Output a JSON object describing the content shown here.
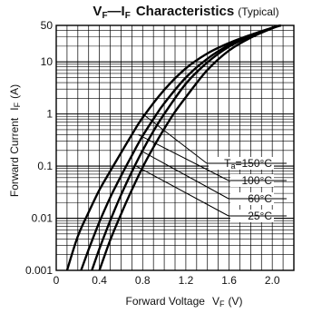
{
  "chart_data": {
    "type": "line",
    "title": {
      "main_prefix": "V",
      "main_sub1": "F",
      "dash": "—",
      "main_i": "I",
      "main_sub2": "F",
      "main_rest": "Characteristics",
      "typ": "(Typical)"
    },
    "xlabel": {
      "text": "Forward Voltage",
      "var": "V",
      "var_sub": "F",
      "unit": "(V)"
    },
    "ylabel": {
      "text": "Forward Current",
      "var": "I",
      "var_sub": "F",
      "unit": "(A)"
    },
    "x_scale": "linear",
    "y_scale": "log",
    "xlim": [
      0,
      2.2
    ],
    "ylim": [
      0.001,
      50
    ],
    "x_ticks": [
      {
        "value": 0,
        "label": "0"
      },
      {
        "value": 0.4,
        "label": "0.4"
      },
      {
        "value": 0.8,
        "label": "0.8"
      },
      {
        "value": 1.2,
        "label": "1.2"
      },
      {
        "value": 1.6,
        "label": "1.6"
      },
      {
        "value": 2.0,
        "label": "2.0"
      }
    ],
    "y_ticks": [
      {
        "value": 0.001,
        "label": "0.001"
      },
      {
        "value": 0.01,
        "label": "0.01"
      },
      {
        "value": 0.1,
        "label": "0.1"
      },
      {
        "value": 1,
        "label": "1"
      },
      {
        "value": 10,
        "label": "10"
      },
      {
        "value": 50,
        "label": "50"
      }
    ],
    "grid": true,
    "series": [
      {
        "name": "150°C",
        "x": [
          0.1,
          0.2,
          0.3,
          0.4,
          0.5,
          0.6,
          0.7,
          0.8,
          1.0,
          1.2,
          1.4,
          1.6,
          1.8,
          2.0,
          2.08
        ],
        "y": [
          0.001,
          0.0045,
          0.013,
          0.035,
          0.08,
          0.18,
          0.4,
          0.85,
          2.9,
          7.5,
          14.5,
          23,
          33,
          45,
          50
        ]
      },
      {
        "name": "100°C",
        "x": [
          0.23,
          0.3,
          0.4,
          0.5,
          0.6,
          0.7,
          0.8,
          0.9,
          1.0,
          1.2,
          1.4,
          1.6,
          1.8,
          2.0,
          2.08
        ],
        "y": [
          0.001,
          0.0025,
          0.0085,
          0.025,
          0.065,
          0.16,
          0.38,
          0.8,
          1.6,
          5.0,
          11.5,
          21,
          32,
          45,
          50
        ]
      },
      {
        "name": "60°C",
        "x": [
          0.33,
          0.4,
          0.5,
          0.6,
          0.7,
          0.8,
          0.9,
          1.0,
          1.2,
          1.4,
          1.6,
          1.8,
          2.0,
          2.08
        ],
        "y": [
          0.001,
          0.0026,
          0.009,
          0.028,
          0.078,
          0.2,
          0.47,
          1.0,
          3.8,
          9.8,
          19.5,
          31,
          45,
          50
        ]
      },
      {
        "name": "25°C",
        "x": [
          0.4,
          0.5,
          0.6,
          0.7,
          0.8,
          0.9,
          1.0,
          1.1,
          1.2,
          1.4,
          1.6,
          1.8,
          2.0,
          2.08
        ],
        "y": [
          0.001,
          0.0038,
          0.012,
          0.035,
          0.095,
          0.23,
          0.52,
          1.1,
          2.1,
          7.0,
          16.5,
          29,
          44,
          50
        ]
      }
    ],
    "annotations": {
      "ta_prefix": "T",
      "ta_sub": "a",
      "ta_eq": "=",
      "labels": [
        {
          "series": "150°C",
          "text": "150°C",
          "anchor": [
            0.8,
            1.0
          ]
        },
        {
          "series": "100°C",
          "text": "100°C",
          "anchor": [
            0.76,
            0.4
          ]
        },
        {
          "series": "60°C",
          "text": "60°C",
          "anchor": [
            0.78,
            0.2
          ]
        },
        {
          "series": "25°C",
          "text": "25°C",
          "anchor": [
            0.74,
            0.1
          ]
        }
      ]
    }
  }
}
